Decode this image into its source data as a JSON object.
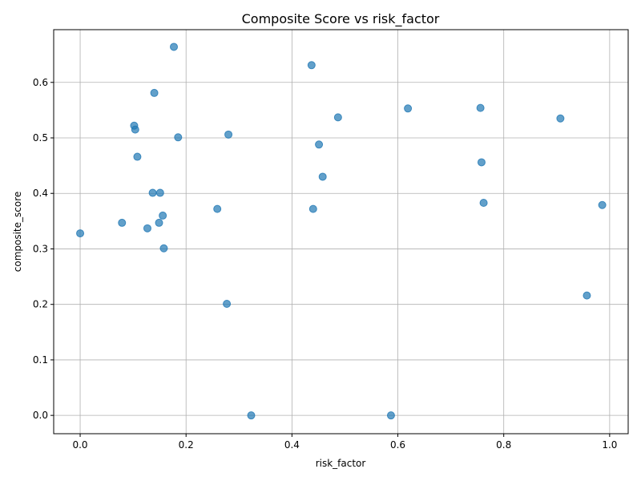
{
  "chart_data": {
    "type": "scatter",
    "title": "Composite Score vs risk_factor",
    "xlabel": "risk_factor",
    "ylabel": "composite_score",
    "xlim": [
      -0.05,
      1.035
    ],
    "ylim": [
      -0.033,
      0.695
    ],
    "xticks": [
      0.0,
      0.2,
      0.4,
      0.6,
      0.8,
      1.0
    ],
    "xtick_labels": [
      "0.0",
      "0.2",
      "0.4",
      "0.6",
      "0.8",
      "1.0"
    ],
    "yticks": [
      0.0,
      0.1,
      0.2,
      0.3,
      0.4,
      0.5,
      0.6
    ],
    "ytick_labels": [
      "0.0",
      "0.1",
      "0.2",
      "0.3",
      "0.4",
      "0.5",
      "0.6"
    ],
    "grid": true,
    "color": "#1f77b4",
    "points": [
      {
        "x": 0.0,
        "y": 0.328
      },
      {
        "x": 0.079,
        "y": 0.347
      },
      {
        "x": 0.102,
        "y": 0.522
      },
      {
        "x": 0.104,
        "y": 0.515
      },
      {
        "x": 0.108,
        "y": 0.466
      },
      {
        "x": 0.127,
        "y": 0.337
      },
      {
        "x": 0.137,
        "y": 0.401
      },
      {
        "x": 0.14,
        "y": 0.581
      },
      {
        "x": 0.149,
        "y": 0.347
      },
      {
        "x": 0.151,
        "y": 0.401
      },
      {
        "x": 0.156,
        "y": 0.36
      },
      {
        "x": 0.158,
        "y": 0.301
      },
      {
        "x": 0.177,
        "y": 0.664
      },
      {
        "x": 0.185,
        "y": 0.501
      },
      {
        "x": 0.259,
        "y": 0.372
      },
      {
        "x": 0.277,
        "y": 0.201
      },
      {
        "x": 0.28,
        "y": 0.506
      },
      {
        "x": 0.323,
        "y": 0.0
      },
      {
        "x": 0.437,
        "y": 0.631
      },
      {
        "x": 0.44,
        "y": 0.372
      },
      {
        "x": 0.451,
        "y": 0.488
      },
      {
        "x": 0.458,
        "y": 0.43
      },
      {
        "x": 0.487,
        "y": 0.537
      },
      {
        "x": 0.587,
        "y": 0.0
      },
      {
        "x": 0.619,
        "y": 0.553
      },
      {
        "x": 0.756,
        "y": 0.554
      },
      {
        "x": 0.758,
        "y": 0.456
      },
      {
        "x": 0.762,
        "y": 0.383
      },
      {
        "x": 0.907,
        "y": 0.535
      },
      {
        "x": 0.957,
        "y": 0.216
      },
      {
        "x": 0.986,
        "y": 0.379
      }
    ]
  }
}
